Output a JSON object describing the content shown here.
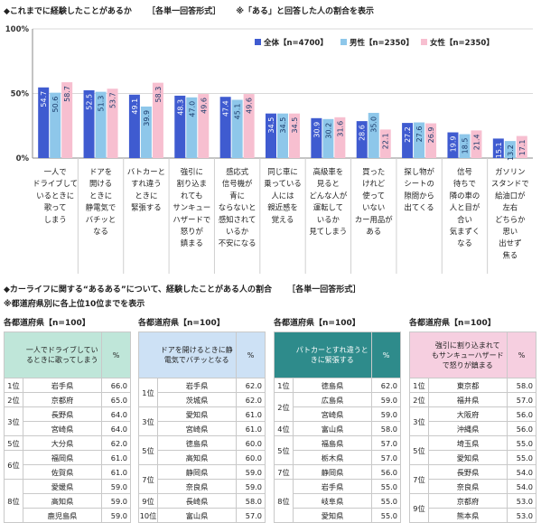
{
  "section1": {
    "title": "◆これまでに経験したことがあるか",
    "format": "［各単一回答形式］",
    "note": "※「ある」と回答した人の割合を表示"
  },
  "section2": {
    "title": "◆カーライフに関する“あるある”について、経験したことがある人の割合",
    "format": "［各単一回答形式］",
    "note": "※都道府県別に各上位10位までを表示"
  },
  "colors": {
    "all": "#3f5bd0",
    "male": "#8ec7ea",
    "female": "#f7bfd0"
  },
  "chart_data": {
    "type": "bar",
    "y_ticks": [
      "0%",
      "50%",
      "100%"
    ],
    "ylim": [
      0,
      100
    ],
    "categories": [
      [
        "一人で",
        "ドライブして",
        "いるときに",
        "歌って",
        "しまう"
      ],
      [
        "ドアを",
        "開ける",
        "ときに",
        "静電気で",
        "バチッと",
        "なる"
      ],
      [
        "バトカーと",
        "すれ違う",
        "ときに",
        "緊張する"
      ],
      [
        "強引に",
        "割り込ま",
        "れても",
        "サンキュー",
        "ハザードで",
        "怒りが",
        "鎮まる"
      ],
      [
        "感応式",
        "信号機が",
        "青に",
        "ならないと",
        "感知されて",
        "いるか",
        "不安になる"
      ],
      [
        "同じ車に",
        "乗っている",
        "人には",
        "親近感を",
        "覚える"
      ],
      [
        "高級車を",
        "見ると",
        "どんな人が",
        "運転して",
        "いるか",
        "見てしまう"
      ],
      [
        "買った",
        "けれど",
        "使って",
        "いない",
        "カー用品が",
        "ある"
      ],
      [
        "探し物が",
        "シートの",
        "隙間から",
        "出てくる"
      ],
      [
        "信号",
        "待ちで",
        "隣の車の",
        "人と目が",
        "合い",
        "気まずく",
        "なる"
      ],
      [
        "ガソリン",
        "スタンドで",
        "給油口が",
        "左右",
        "どちらか",
        "思い",
        "出せず",
        "焦る"
      ]
    ],
    "series": [
      {
        "name": "全体【n=4700】",
        "values": [
          54.7,
          52.5,
          49.1,
          48.3,
          47.4,
          34.5,
          30.9,
          28.6,
          27.2,
          19.9,
          15.1
        ]
      },
      {
        "name": "男性【n=2350】",
        "values": [
          50.6,
          51.3,
          39.9,
          47.0,
          45.1,
          34.5,
          30.2,
          35.0,
          27.6,
          18.5,
          13.2
        ]
      },
      {
        "name": "女性【n=2350】",
        "values": [
          58.7,
          53.7,
          58.3,
          49.6,
          49.6,
          34.5,
          31.6,
          22.1,
          26.9,
          21.4,
          17.1
        ]
      }
    ]
  },
  "tables": [
    {
      "group": "各都道府県【n=100】",
      "item": [
        "一人でドライブしてい",
        "るときに歌ってしまう"
      ],
      "unit": "%",
      "head_color": "#bfe6d9",
      "rows": [
        {
          "rank": "1位",
          "pref": "岩手県",
          "value": "66.0"
        },
        {
          "rank": "2位",
          "pref": "京都府",
          "value": "65.0"
        },
        {
          "rank": "3位",
          "pref": "長野県",
          "value": "64.0"
        },
        {
          "rank": "",
          "pref": "宮崎県",
          "value": "64.0"
        },
        {
          "rank": "5位",
          "pref": "大分県",
          "value": "62.0"
        },
        {
          "rank": "6位",
          "pref": "福岡県",
          "value": "61.0"
        },
        {
          "rank": "",
          "pref": "佐賀県",
          "value": "61.0"
        },
        {
          "rank": "8位",
          "pref": "愛媛県",
          "value": "59.0"
        },
        {
          "rank": "",
          "pref": "高知県",
          "value": "59.0"
        },
        {
          "rank": "",
          "pref": "鹿児島県",
          "value": "59.0"
        }
      ]
    },
    {
      "group": "各都道府県【n=100】",
      "item": [
        "ドアを開けるときに静",
        "電気でバチッとなる"
      ],
      "unit": "%",
      "head_color": "#cde1f5",
      "rows": [
        {
          "rank": "1位",
          "pref": "岩手県",
          "value": "62.0"
        },
        {
          "rank": "",
          "pref": "茨城県",
          "value": "62.0"
        },
        {
          "rank": "3位",
          "pref": "愛知県",
          "value": "61.0"
        },
        {
          "rank": "",
          "pref": "宮崎県",
          "value": "61.0"
        },
        {
          "rank": "5位",
          "pref": "徳島県",
          "value": "60.0"
        },
        {
          "rank": "",
          "pref": "高知県",
          "value": "60.0"
        },
        {
          "rank": "7位",
          "pref": "静岡県",
          "value": "59.0"
        },
        {
          "rank": "",
          "pref": "奈良県",
          "value": "59.0"
        },
        {
          "rank": "9位",
          "pref": "長崎県",
          "value": "58.0"
        },
        {
          "rank": "10位",
          "pref": "富山県",
          "value": "57.0"
        }
      ]
    },
    {
      "group": "各都道府県【n=100】",
      "item": [
        "パトカーとすれ違うと",
        "きに緊張する"
      ],
      "unit": "%",
      "head_color": "#2e8b8b",
      "rows": [
        {
          "rank": "1位",
          "pref": "徳島県",
          "value": "62.0"
        },
        {
          "rank": "2位",
          "pref": "広島県",
          "value": "59.0"
        },
        {
          "rank": "",
          "pref": "宮崎県",
          "value": "59.0"
        },
        {
          "rank": "4位",
          "pref": "富山県",
          "value": "58.0"
        },
        {
          "rank": "5位",
          "pref": "福島県",
          "value": "57.0"
        },
        {
          "rank": "",
          "pref": "栃木県",
          "value": "57.0"
        },
        {
          "rank": "7位",
          "pref": "静岡県",
          "value": "56.0"
        },
        {
          "rank": "8位",
          "pref": "岩手県",
          "value": "55.0"
        },
        {
          "rank": "",
          "pref": "岐阜県",
          "value": "55.0"
        },
        {
          "rank": "",
          "pref": "愛知県",
          "value": "55.0"
        }
      ]
    },
    {
      "group": "各都道府県【n=100】",
      "item": [
        "強引に割り込まれて",
        "もサンキューハザード",
        "で怒りが鎮まる"
      ],
      "unit": "%",
      "head_color": "#f6cfe0",
      "rows": [
        {
          "rank": "1位",
          "pref": "東京都",
          "value": "58.0"
        },
        {
          "rank": "2位",
          "pref": "福井県",
          "value": "57.0"
        },
        {
          "rank": "3位",
          "pref": "大阪府",
          "value": "56.0"
        },
        {
          "rank": "",
          "pref": "沖縄県",
          "value": "56.0"
        },
        {
          "rank": "5位",
          "pref": "埼玉県",
          "value": "55.0"
        },
        {
          "rank": "",
          "pref": "愛知県",
          "value": "55.0"
        },
        {
          "rank": "7位",
          "pref": "長野県",
          "value": "54.0"
        },
        {
          "rank": "",
          "pref": "奈良県",
          "value": "54.0"
        },
        {
          "rank": "9位",
          "pref": "京都府",
          "value": "53.0"
        },
        {
          "rank": "",
          "pref": "熊本県",
          "value": "53.0"
        }
      ]
    }
  ]
}
